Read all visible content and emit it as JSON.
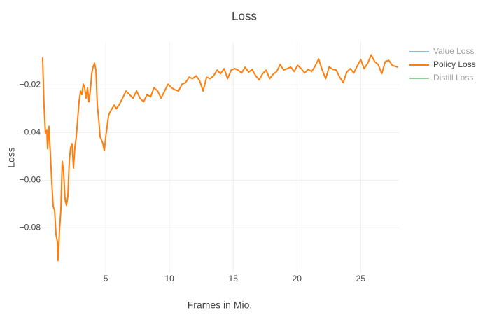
{
  "chart_data": {
    "type": "line",
    "title": "Loss",
    "x_label": "Frames in Mio.",
    "y_label": "Loss",
    "xlim": [
      0,
      28
    ],
    "xticks": [
      5,
      10,
      15,
      20,
      25
    ],
    "ylim": [
      -0.099,
      -0.002
    ],
    "yticks": [
      {
        "value": -0.08,
        "label": "−0.08"
      },
      {
        "value": -0.06,
        "label": "−0.06"
      },
      {
        "value": -0.04,
        "label": "−0.04"
      },
      {
        "value": -0.02,
        "label": "−0.02"
      }
    ],
    "grid": true,
    "legend": "right",
    "x": [
      0.05,
      0.16,
      0.27,
      0.38,
      0.44,
      0.55,
      0.66,
      0.77,
      0.88,
      0.99,
      1.1,
      1.21,
      1.26,
      1.37,
      1.48,
      1.59,
      1.7,
      1.81,
      1.92,
      2.03,
      2.14,
      2.25,
      2.36,
      2.47,
      2.58,
      2.69,
      2.8,
      2.91,
      3.02,
      3.13,
      3.24,
      3.35,
      3.46,
      3.57,
      3.68,
      3.79,
      3.9,
      4.01,
      4.12,
      4.23,
      4.34,
      4.45,
      4.56,
      4.67,
      4.78,
      4.89,
      5.0,
      5.11,
      5.22,
      5.33,
      5.49,
      5.66,
      5.82,
      6.04,
      6.32,
      6.59,
      6.87,
      7.14,
      7.42,
      7.69,
      7.97,
      8.24,
      8.52,
      8.79,
      9.07,
      9.34,
      9.62,
      9.89,
      10.16,
      10.44,
      10.71,
      10.99,
      11.26,
      11.54,
      11.81,
      12.09,
      12.36,
      12.64,
      12.91,
      13.19,
      13.46,
      13.74,
      14.01,
      14.29,
      14.56,
      14.84,
      15.11,
      15.38,
      15.66,
      15.93,
      16.21,
      16.48,
      16.76,
      17.03,
      17.31,
      17.58,
      17.86,
      18.13,
      18.41,
      18.68,
      18.96,
      19.23,
      19.51,
      19.78,
      20.05,
      20.33,
      20.6,
      20.88,
      21.15,
      21.43,
      21.7,
      21.98,
      22.25,
      22.53,
      22.8,
      23.08,
      23.35,
      23.63,
      23.9,
      24.18,
      24.45,
      24.73,
      25.0,
      25.27,
      25.55,
      25.82,
      26.1,
      26.37,
      26.65,
      26.92,
      27.2,
      27.47,
      27.91
    ],
    "series": [
      {
        "name": "Value Loss",
        "color": "#1f77b4",
        "visible": "legendonly"
      },
      {
        "name": "Policy Loss",
        "color": "#ff7f0e",
        "visible": true,
        "values": [
          -0.0085,
          -0.0285,
          -0.0403,
          -0.0388,
          -0.0468,
          -0.0374,
          -0.0491,
          -0.0609,
          -0.0712,
          -0.0726,
          -0.0829,
          -0.0859,
          -0.0938,
          -0.0815,
          -0.0726,
          -0.0521,
          -0.0565,
          -0.0682,
          -0.0706,
          -0.0668,
          -0.0521,
          -0.0462,
          -0.0447,
          -0.055,
          -0.0462,
          -0.0418,
          -0.0344,
          -0.0271,
          -0.0226,
          -0.0241,
          -0.0197,
          -0.0212,
          -0.0256,
          -0.0212,
          -0.0271,
          -0.0226,
          -0.0153,
          -0.0124,
          -0.0109,
          -0.0138,
          -0.0285,
          -0.0344,
          -0.0418,
          -0.0432,
          -0.0447,
          -0.0476,
          -0.0418,
          -0.0374,
          -0.0329,
          -0.0315,
          -0.03,
          -0.0285,
          -0.03,
          -0.0285,
          -0.0256,
          -0.0226,
          -0.0241,
          -0.0256,
          -0.0226,
          -0.0256,
          -0.0271,
          -0.0241,
          -0.025,
          -0.0212,
          -0.0226,
          -0.0256,
          -0.0226,
          -0.0197,
          -0.0212,
          -0.0221,
          -0.0226,
          -0.0197,
          -0.0191,
          -0.0168,
          -0.0174,
          -0.0162,
          -0.0182,
          -0.0226,
          -0.0168,
          -0.0174,
          -0.0162,
          -0.0138,
          -0.0153,
          -0.0132,
          -0.0174,
          -0.0138,
          -0.0132,
          -0.0138,
          -0.015,
          -0.0126,
          -0.0147,
          -0.0135,
          -0.0162,
          -0.0179,
          -0.0153,
          -0.0138,
          -0.0174,
          -0.0156,
          -0.0144,
          -0.0115,
          -0.0138,
          -0.0132,
          -0.0126,
          -0.0144,
          -0.0118,
          -0.0132,
          -0.015,
          -0.0135,
          -0.0144,
          -0.0121,
          -0.0091,
          -0.0138,
          -0.0174,
          -0.0124,
          -0.0135,
          -0.0138,
          -0.0168,
          -0.0191,
          -0.0147,
          -0.0132,
          -0.015,
          -0.0121,
          -0.0094,
          -0.0132,
          -0.0109,
          -0.0074,
          -0.0103,
          -0.0115,
          -0.0153,
          -0.0103,
          -0.0097,
          -0.0118,
          -0.0126
        ]
      },
      {
        "name": "Distill Loss",
        "color": "#2ca02c",
        "visible": "legendonly"
      }
    ]
  }
}
